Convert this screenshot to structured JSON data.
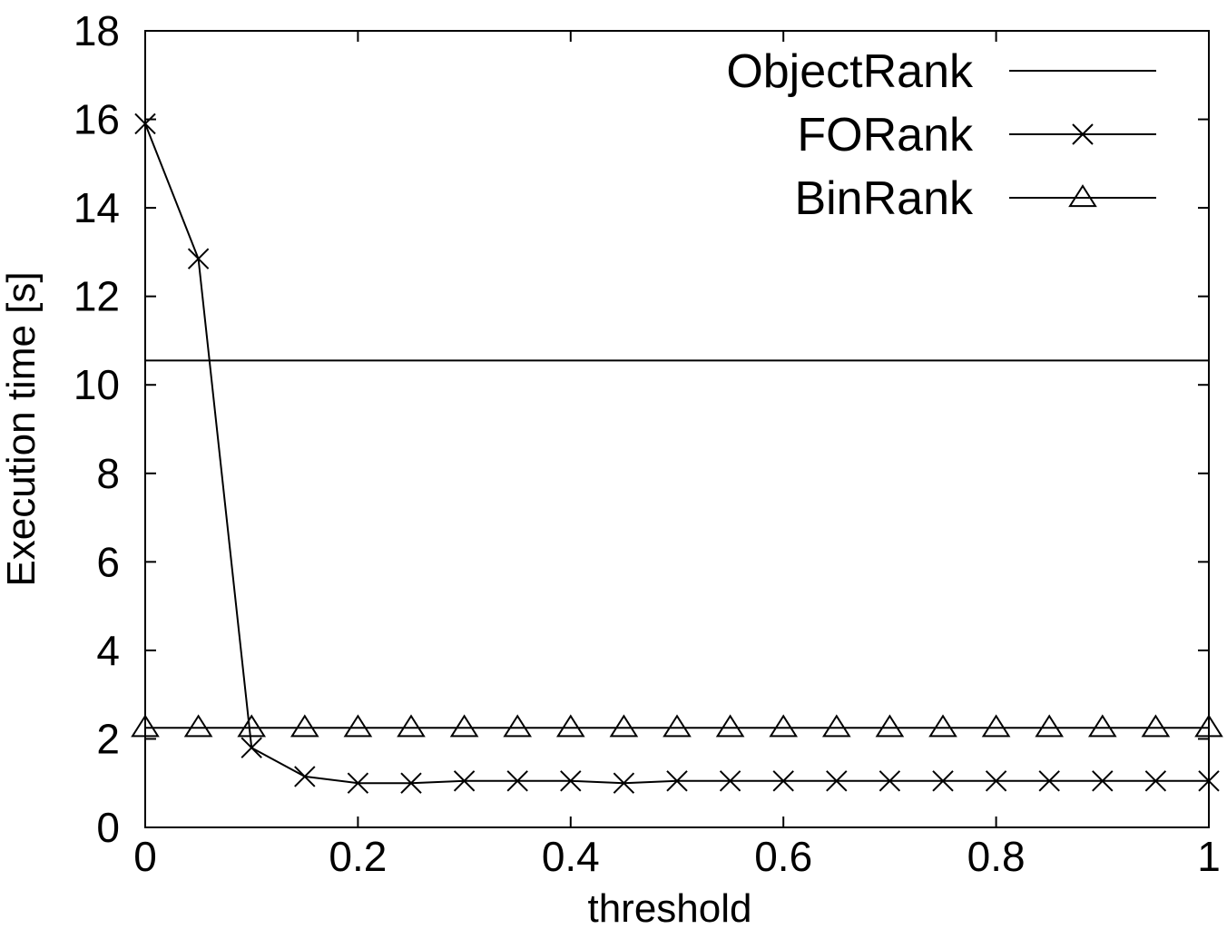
{
  "chart_data": {
    "type": "line",
    "title": "",
    "xlabel": "threshold",
    "ylabel": "Execution time [s]",
    "xlim": [
      0,
      1
    ],
    "ylim": [
      0,
      18
    ],
    "xticks": [
      0,
      0.2,
      0.4,
      0.6,
      0.8,
      1
    ],
    "xtick_labels": [
      "0",
      "0.2",
      "0.4",
      "0.6",
      "0.8",
      "1"
    ],
    "yticks": [
      0,
      2,
      4,
      6,
      8,
      10,
      12,
      14,
      16,
      18
    ],
    "ytick_labels": [
      "0",
      "2",
      "4",
      "6",
      "8",
      "10",
      "12",
      "14",
      "16",
      "18"
    ],
    "grid": false,
    "legend_position": "top-right",
    "x": [
      0,
      0.05,
      0.1,
      0.15,
      0.2,
      0.25,
      0.3,
      0.35,
      0.4,
      0.45,
      0.5,
      0.55,
      0.6,
      0.65,
      0.7,
      0.75,
      0.8,
      0.85,
      0.9,
      0.95,
      1
    ],
    "series": [
      {
        "name": "ObjectRank",
        "marker": "none",
        "values": [
          10.55,
          10.55,
          10.55,
          10.55,
          10.55,
          10.55,
          10.55,
          10.55,
          10.55,
          10.55,
          10.55,
          10.55,
          10.55,
          10.55,
          10.55,
          10.55,
          10.55,
          10.55,
          10.55,
          10.55,
          10.55
        ]
      },
      {
        "name": "FORank",
        "marker": "cross",
        "values": [
          15.9,
          12.85,
          1.8,
          1.15,
          1.0,
          1.0,
          1.05,
          1.05,
          1.05,
          1.0,
          1.05,
          1.05,
          1.05,
          1.05,
          1.05,
          1.05,
          1.05,
          1.05,
          1.05,
          1.05,
          1.05
        ]
      },
      {
        "name": "BinRank",
        "marker": "triangle",
        "values": [
          2.25,
          2.25,
          2.25,
          2.25,
          2.25,
          2.25,
          2.25,
          2.25,
          2.25,
          2.25,
          2.25,
          2.25,
          2.25,
          2.25,
          2.25,
          2.25,
          2.25,
          2.25,
          2.25,
          2.25,
          2.25
        ]
      }
    ]
  }
}
